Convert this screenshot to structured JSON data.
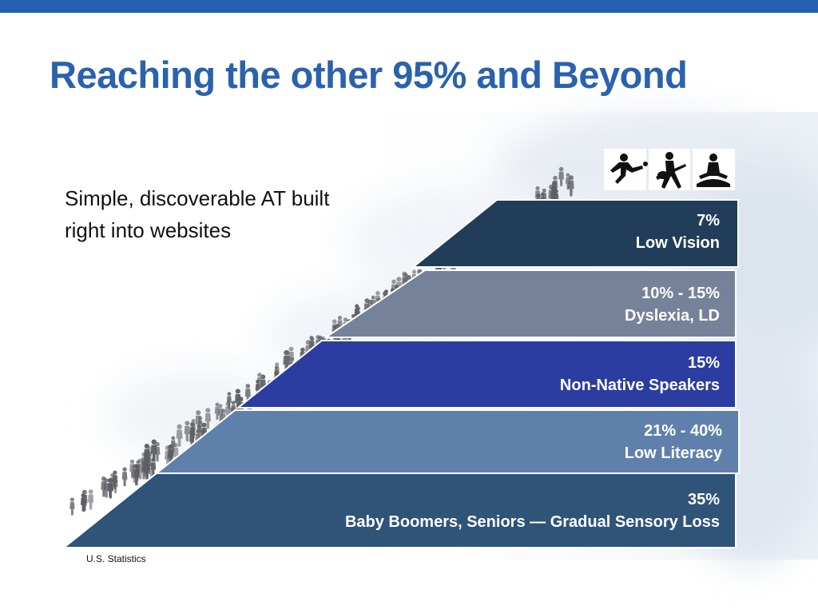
{
  "title": "Reaching the other 95% and Beyond",
  "subtitle": "Simple, discoverable AT built right into websites",
  "tiers": [
    {
      "percent": "7%",
      "label": "Low Vision",
      "color": "#223d59"
    },
    {
      "percent": "10% - 15%",
      "label": "Dyslexia, LD",
      "color": "#768299"
    },
    {
      "percent": "15%",
      "label": "Non-Native Speakers",
      "color": "#2b3da0"
    },
    {
      "percent": "21% - 40%",
      "label": "Low Literacy",
      "color": "#5f80ab"
    },
    {
      "percent": "35%",
      "label": "Baby Boomers, Seniors — Gradual Sensory Loss",
      "color": "#305478"
    }
  ],
  "footnote": "U.S. Statistics",
  "icons": [
    "soccer-player-icon",
    "guitar-player-icon",
    "meditation-icon",
    "crowd-silhouette-icon"
  ],
  "colors": {
    "accent": "#2660b2",
    "title": "#2a62ad"
  }
}
